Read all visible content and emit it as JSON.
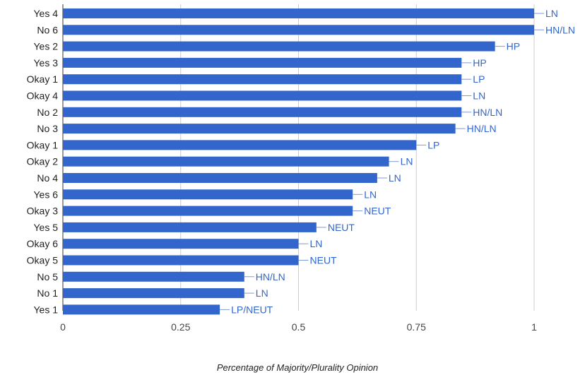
{
  "chart_data": {
    "type": "bar",
    "orientation": "horizontal",
    "categories": [
      "Yes 4",
      "No 6",
      "Yes 2",
      "Yes 3",
      "Okay 1",
      "Okay 4",
      "No 2",
      "No 3",
      "Okay 1",
      "Okay 2",
      "No 4",
      "Yes 6",
      "Okay 3",
      "Yes 5",
      "Okay 6",
      "Okay 5",
      "No 5",
      "No 1",
      "Yes 1"
    ],
    "values": [
      1.0,
      1.0,
      0.917,
      0.846,
      0.846,
      0.846,
      0.846,
      0.833,
      0.75,
      0.692,
      0.667,
      0.615,
      0.615,
      0.538,
      0.5,
      0.5,
      0.385,
      0.385,
      0.333
    ],
    "data_labels": [
      "LN",
      "HN/LN",
      "HP",
      "HP",
      "LP",
      "LN",
      "HN/LN",
      "HN/LN",
      "LP",
      "LN",
      "LN",
      "LN",
      "NEUT",
      "NEUT",
      "LN",
      "NEUT",
      "HN/LN",
      "LN",
      "LP/NEUT"
    ],
    "xlabel": "Percentage of Majority/Plurality Opinion",
    "ylabel": "",
    "title": "",
    "xlim": [
      0,
      1
    ],
    "xticks": [
      0,
      0.25,
      0.5,
      0.75,
      1
    ],
    "xtick_labels": [
      "0",
      "0.25",
      "0.5",
      "0.75",
      "1"
    ],
    "grid": "vertical",
    "legend": "none",
    "colors": {
      "bar": "#3366cc",
      "data_label": "#3366cc",
      "leader_line": "#7f9ad6",
      "grid": "#cccccc",
      "axis": "#333333"
    }
  }
}
